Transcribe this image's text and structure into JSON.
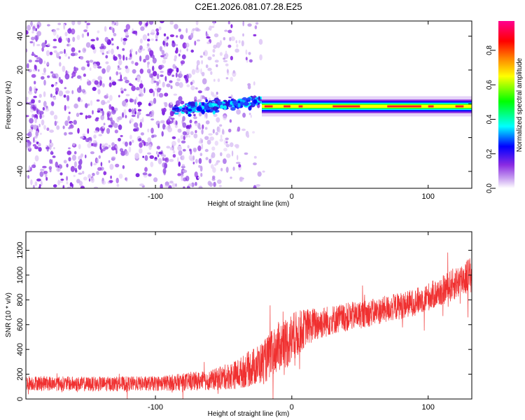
{
  "title": "C2E1.2026.081.07.28.E25",
  "chart_data": [
    {
      "type": "heatmap",
      "xlabel": "Height of straight line (km)",
      "ylabel": "Frequency (Hz)",
      "xlim": [
        -195,
        132
      ],
      "ylim": [
        -50,
        49
      ],
      "xticks": [
        -100,
        0,
        100
      ],
      "yticks": [
        -40,
        -20,
        0,
        20,
        40
      ],
      "tick_labels_x": [
        "-100",
        "0",
        "100"
      ],
      "tick_labels_y": [
        "-40",
        "-20",
        "0",
        "20",
        "40"
      ],
      "colorbar": {
        "label": "Normalized spectral amplitude",
        "range": [
          0.0,
          0.97
        ],
        "ticks": [
          0.0,
          0.2,
          0.4,
          0.6,
          0.8
        ],
        "tick_labels": [
          "0.0",
          "0.2",
          "0.4",
          "0.6",
          "0.8"
        ],
        "colors": [
          "#ffffff",
          "#8a2be2",
          "#0000ff",
          "#00ffff",
          "#00ff00",
          "#ffff00",
          "#ff8000",
          "#ff0000",
          "#ff00a0"
        ]
      },
      "regions": [
        {
          "name": "scattered noise",
          "x_range": [
            -195,
            -20
          ],
          "freq_range": [
            -50,
            49
          ],
          "amplitude": 0.1
        },
        {
          "name": "onset cluster",
          "x_range": [
            -87,
            -22
          ],
          "freq_range": [
            -8,
            7
          ],
          "amplitude": 0.3
        },
        {
          "name": "narrow band",
          "x_range": [
            -22,
            132
          ],
          "freq_center": -1.5,
          "amplitude_peak": 0.97
        }
      ]
    },
    {
      "type": "line",
      "xlabel": "Height of straight line (km)",
      "ylabel": "SNR (10 * v/v)",
      "xlim": [
        -195,
        132
      ],
      "ylim": [
        0,
        1350
      ],
      "xticks": [
        -100,
        0,
        100
      ],
      "yticks": [
        0,
        200,
        400,
        600,
        800,
        1000,
        1200
      ],
      "tick_labels_x": [
        "-100",
        "0",
        "100"
      ],
      "tick_labels_y": [
        "0",
        "200",
        "400",
        "600",
        "800",
        "1000",
        "1200"
      ],
      "series": [
        {
          "name": "SNR",
          "color": "#f03030",
          "x": [
            -195,
            -150,
            -100,
            -60,
            -40,
            -20,
            -10,
            0,
            10,
            30,
            60,
            90,
            110,
            130
          ],
          "y_mean": [
            130,
            120,
            125,
            150,
            200,
            300,
            420,
            480,
            580,
            640,
            700,
            780,
            870,
            1000
          ],
          "y_spread": [
            60,
            60,
            60,
            80,
            120,
            180,
            200,
            220,
            150,
            120,
            110,
            110,
            120,
            150
          ]
        }
      ]
    }
  ]
}
